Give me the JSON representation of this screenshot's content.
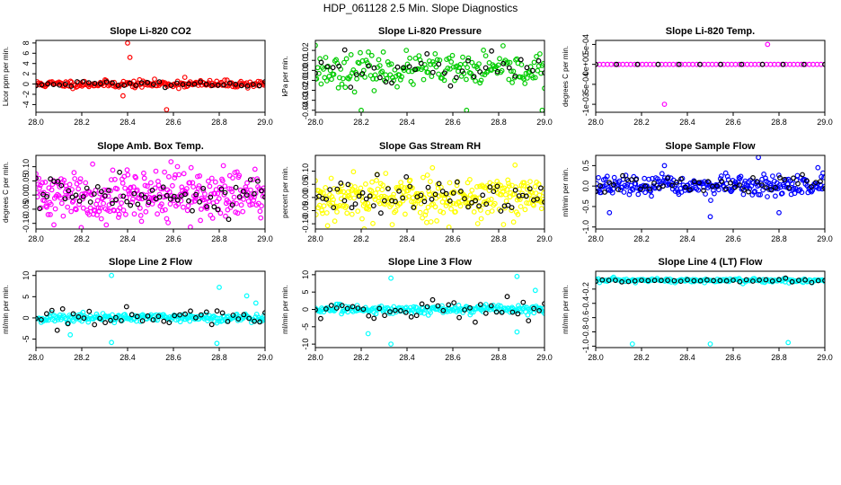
{
  "title": "HDP_061128  2.5 Min. Slope Diagnostics",
  "chart_data": [
    {
      "type": "scatter",
      "title": "Slope Li-820 CO2",
      "xlabel": "",
      "ylabel": "Licor ppm per min.",
      "xlim": [
        28.0,
        29.0
      ],
      "ylim": [
        -5.5,
        8.5
      ],
      "xticks": [
        28.0,
        28.2,
        28.4,
        28.6,
        28.8,
        29.0
      ],
      "xtick_labels": [
        "28.0",
        "28.2",
        "28.4",
        "28.6",
        "28.8",
        "29.0"
      ],
      "yticks": [
        -4,
        -2,
        0,
        2,
        4,
        6,
        8
      ],
      "ytick_labels": [
        "-4",
        "-2",
        "0",
        "2",
        "4",
        "6",
        "8"
      ],
      "sim": {
        "seed": 11,
        "n": 200,
        "sd": 0.35,
        "sd2": 0.3,
        "outliers": [
          [
            28.4,
            8.0
          ],
          [
            28.41,
            5.2
          ],
          [
            28.38,
            -2.3
          ],
          [
            28.57,
            -5.0
          ],
          [
            28.65,
            1.3
          ]
        ]
      },
      "series": [
        {
          "color": "#ff0000",
          "values": []
        },
        {
          "color": "#000000",
          "values": []
        }
      ]
    },
    {
      "type": "scatter",
      "title": "Slope Li-820 Pressure",
      "xlabel": "",
      "ylabel": "kPa per min.",
      "xlim": [
        28.0,
        29.0
      ],
      "ylim": [
        -0.042,
        0.03
      ],
      "xticks": [
        28.0,
        28.2,
        28.4,
        28.6,
        28.8,
        29.0
      ],
      "xtick_labels": [
        "28.0",
        "28.2",
        "28.4",
        "28.6",
        "28.8",
        "29.0"
      ],
      "yticks": [
        -0.04,
        -0.03,
        -0.02,
        -0.01,
        0.0,
        0.01,
        0.02
      ],
      "ytick_labels": [
        "-0.04",
        "-0.03",
        "-0.02",
        "-0.01",
        "0.00",
        "0.01",
        "0.02"
      ],
      "sim": {
        "seed": 23,
        "n": 200,
        "sd": 0.008,
        "sd2": 0.008,
        "outliers": [
          [
            28.0,
            0.025
          ],
          [
            28.2,
            -0.04
          ],
          [
            28.66,
            -0.04
          ],
          [
            28.99,
            -0.04
          ]
        ]
      },
      "series": [
        {
          "color": "#00cc00",
          "values": []
        },
        {
          "color": "#000000",
          "values": []
        }
      ]
    },
    {
      "type": "scatter",
      "title": "Slope Li-820 Temp.",
      "xlabel": "",
      "ylabel": "degrees C per min.",
      "xlim": [
        28.0,
        29.0
      ],
      "ylim": [
        -0.0012,
        0.0006
      ],
      "xticks": [
        28.0,
        28.2,
        28.4,
        28.6,
        28.8,
        29.0
      ],
      "xtick_labels": [
        "28.0",
        "28.2",
        "28.4",
        "28.6",
        "28.8",
        "29.0"
      ],
      "yticks": [
        -0.001,
        -0.0005,
        0.0,
        0.0005
      ],
      "ytick_labels": [
        "-1e-03",
        "-5e-04",
        "0e+00",
        "5e-04"
      ],
      "sim": {
        "seed": 37,
        "n": 60,
        "sd": 0.0,
        "sd2": 0.0,
        "outliers": [
          [
            28.75,
            0.0005
          ],
          [
            28.3,
            -0.001
          ]
        ]
      },
      "series": [
        {
          "color": "#ff00ff",
          "values": []
        },
        {
          "color": "#000000",
          "values": []
        }
      ]
    },
    {
      "type": "scatter",
      "title": "Slope Amb. Box Temp.",
      "xlabel": "",
      "ylabel": "degrees C per min.",
      "xlim": [
        28.0,
        29.0
      ],
      "ylim": [
        -0.12,
        0.14
      ],
      "xticks": [
        28.0,
        28.2,
        28.4,
        28.6,
        28.8,
        29.0
      ],
      "xtick_labels": [
        "28.0",
        "28.2",
        "28.4",
        "28.6",
        "28.8",
        "29.0"
      ],
      "yticks": [
        -0.1,
        -0.05,
        0.0,
        0.05,
        0.1
      ],
      "ytick_labels": [
        "-0.10",
        "-0.05",
        "0.00",
        "0.05",
        "0.10"
      ],
      "sim": {
        "seed": 41,
        "n": 320,
        "sd": 0.045,
        "sd2": 0.03,
        "outliers": []
      },
      "series": [
        {
          "color": "#ff00ff",
          "values": []
        },
        {
          "color": "#000000",
          "values": []
        }
      ]
    },
    {
      "type": "scatter",
      "title": "Slope Gas Stream RH",
      "xlabel": "",
      "ylabel": "percent per min.",
      "xlim": [
        28.0,
        29.0
      ],
      "ylim": [
        -0.12,
        0.16
      ],
      "xticks": [
        28.0,
        28.2,
        28.4,
        28.6,
        28.8,
        29.0
      ],
      "xtick_labels": [
        "28.0",
        "28.2",
        "28.4",
        "28.6",
        "28.8",
        "29.0"
      ],
      "yticks": [
        -0.1,
        -0.05,
        0.0,
        0.05,
        0.1
      ],
      "ytick_labels": [
        "-0.10",
        "-0.05",
        "0.00",
        "0.05",
        "0.10"
      ],
      "sim": {
        "seed": 53,
        "n": 320,
        "sd": 0.045,
        "sd2": 0.035,
        "outliers": []
      },
      "series": [
        {
          "color": "#ffff00",
          "values": []
        },
        {
          "color": "#000000",
          "values": []
        }
      ]
    },
    {
      "type": "scatter",
      "title": "Slope Sample Flow",
      "xlabel": "",
      "ylabel": "ml/min per min.",
      "xlim": [
        28.0,
        29.0
      ],
      "ylim": [
        -1.05,
        0.75
      ],
      "xticks": [
        28.0,
        28.2,
        28.4,
        28.6,
        28.8,
        29.0
      ],
      "xtick_labels": [
        "28.0",
        "28.2",
        "28.4",
        "28.6",
        "28.8",
        "29.0"
      ],
      "yticks": [
        -1.0,
        -0.5,
        0.0,
        0.5
      ],
      "ytick_labels": [
        "-1.0",
        "-0.5",
        "0.0",
        "0.5"
      ],
      "sim": {
        "seed": 67,
        "n": 260,
        "sd": 0.12,
        "sd2": 0.1,
        "outliers": [
          [
            28.71,
            0.7
          ],
          [
            28.3,
            0.5
          ],
          [
            28.97,
            0.45
          ],
          [
            28.5,
            -0.75
          ],
          [
            28.8,
            -0.65
          ],
          [
            28.06,
            -0.65
          ]
        ]
      },
      "series": [
        {
          "color": "#0000ff",
          "values": []
        },
        {
          "color": "#000000",
          "values": []
        }
      ]
    },
    {
      "type": "scatter",
      "title": "Slope Line 2 Flow",
      "xlabel": "",
      "ylabel": "ml/min per min.",
      "xlim": [
        28.0,
        29.0
      ],
      "ylim": [
        -7,
        11
      ],
      "xticks": [
        28.0,
        28.2,
        28.4,
        28.6,
        28.8,
        29.0
      ],
      "xtick_labels": [
        "28.0",
        "28.2",
        "28.4",
        "28.6",
        "28.8",
        "29.0"
      ],
      "yticks": [
        -5,
        0,
        5,
        10
      ],
      "ytick_labels": [
        "-5",
        "0",
        "5",
        "10"
      ],
      "sim": {
        "seed": 71,
        "n": 220,
        "sd": 0.55,
        "sd2": 1.3,
        "outliers": [
          [
            28.33,
            -5.8
          ],
          [
            28.79,
            -6
          ],
          [
            28.8,
            7.2
          ],
          [
            28.33,
            10
          ],
          [
            28.92,
            5.2
          ],
          [
            28.15,
            -4
          ],
          [
            28.96,
            3.5
          ]
        ]
      },
      "series": [
        {
          "color": "#00ffff",
          "values": []
        },
        {
          "color": "#000000",
          "values": []
        }
      ]
    },
    {
      "type": "scatter",
      "title": "Slope Line 3 Flow",
      "xlabel": "",
      "ylabel": "ml/min per min.",
      "xlim": [
        28.0,
        29.0
      ],
      "ylim": [
        -11,
        11
      ],
      "xticks": [
        28.0,
        28.2,
        28.4,
        28.6,
        28.8,
        29.0
      ],
      "xtick_labels": [
        "28.0",
        "28.2",
        "28.4",
        "28.6",
        "28.8",
        "29.0"
      ],
      "yticks": [
        -10,
        -5,
        0,
        5,
        10
      ],
      "ytick_labels": [
        "-10",
        "-5",
        "0",
        "5",
        "10"
      ],
      "sim": {
        "seed": 83,
        "n": 220,
        "sd": 0.6,
        "sd2": 1.6,
        "outliers": [
          [
            28.33,
            -10
          ],
          [
            28.33,
            9
          ],
          [
            28.23,
            -7
          ],
          [
            28.88,
            9.5
          ],
          [
            28.96,
            5.5
          ],
          [
            28.88,
            -6.5
          ]
        ]
      },
      "series": [
        {
          "color": "#00ffff",
          "values": []
        },
        {
          "color": "#000000",
          "values": []
        }
      ]
    },
    {
      "type": "scatter",
      "title": "Slope Line 4 (LT) Flow",
      "xlabel": "",
      "ylabel": "ml/min per min.",
      "xlim": [
        28.0,
        29.0
      ],
      "ylim": [
        -1.02,
        0.05
      ],
      "xticks": [
        28.0,
        28.2,
        28.4,
        28.6,
        28.8,
        29.0
      ],
      "xtick_labels": [
        "28.0",
        "28.2",
        "28.4",
        "28.6",
        "28.8",
        "29.0"
      ],
      "yticks": [
        -1.0,
        -0.8,
        -0.6,
        -0.4,
        -0.2
      ],
      "ytick_labels": [
        "-1.0",
        "-0.8",
        "-0.6",
        "-0.4",
        "-0.2"
      ],
      "sim": {
        "seed": 97,
        "n": 180,
        "base": -0.08,
        "sd": 0.015,
        "sd2": 0.015,
        "outliers": [
          [
            28.16,
            -0.97
          ],
          [
            28.5,
            -0.97
          ],
          [
            28.84,
            -0.95
          ]
        ]
      },
      "series": [
        {
          "color": "#00ffff",
          "values": []
        },
        {
          "color": "#000000",
          "values": []
        }
      ]
    }
  ]
}
